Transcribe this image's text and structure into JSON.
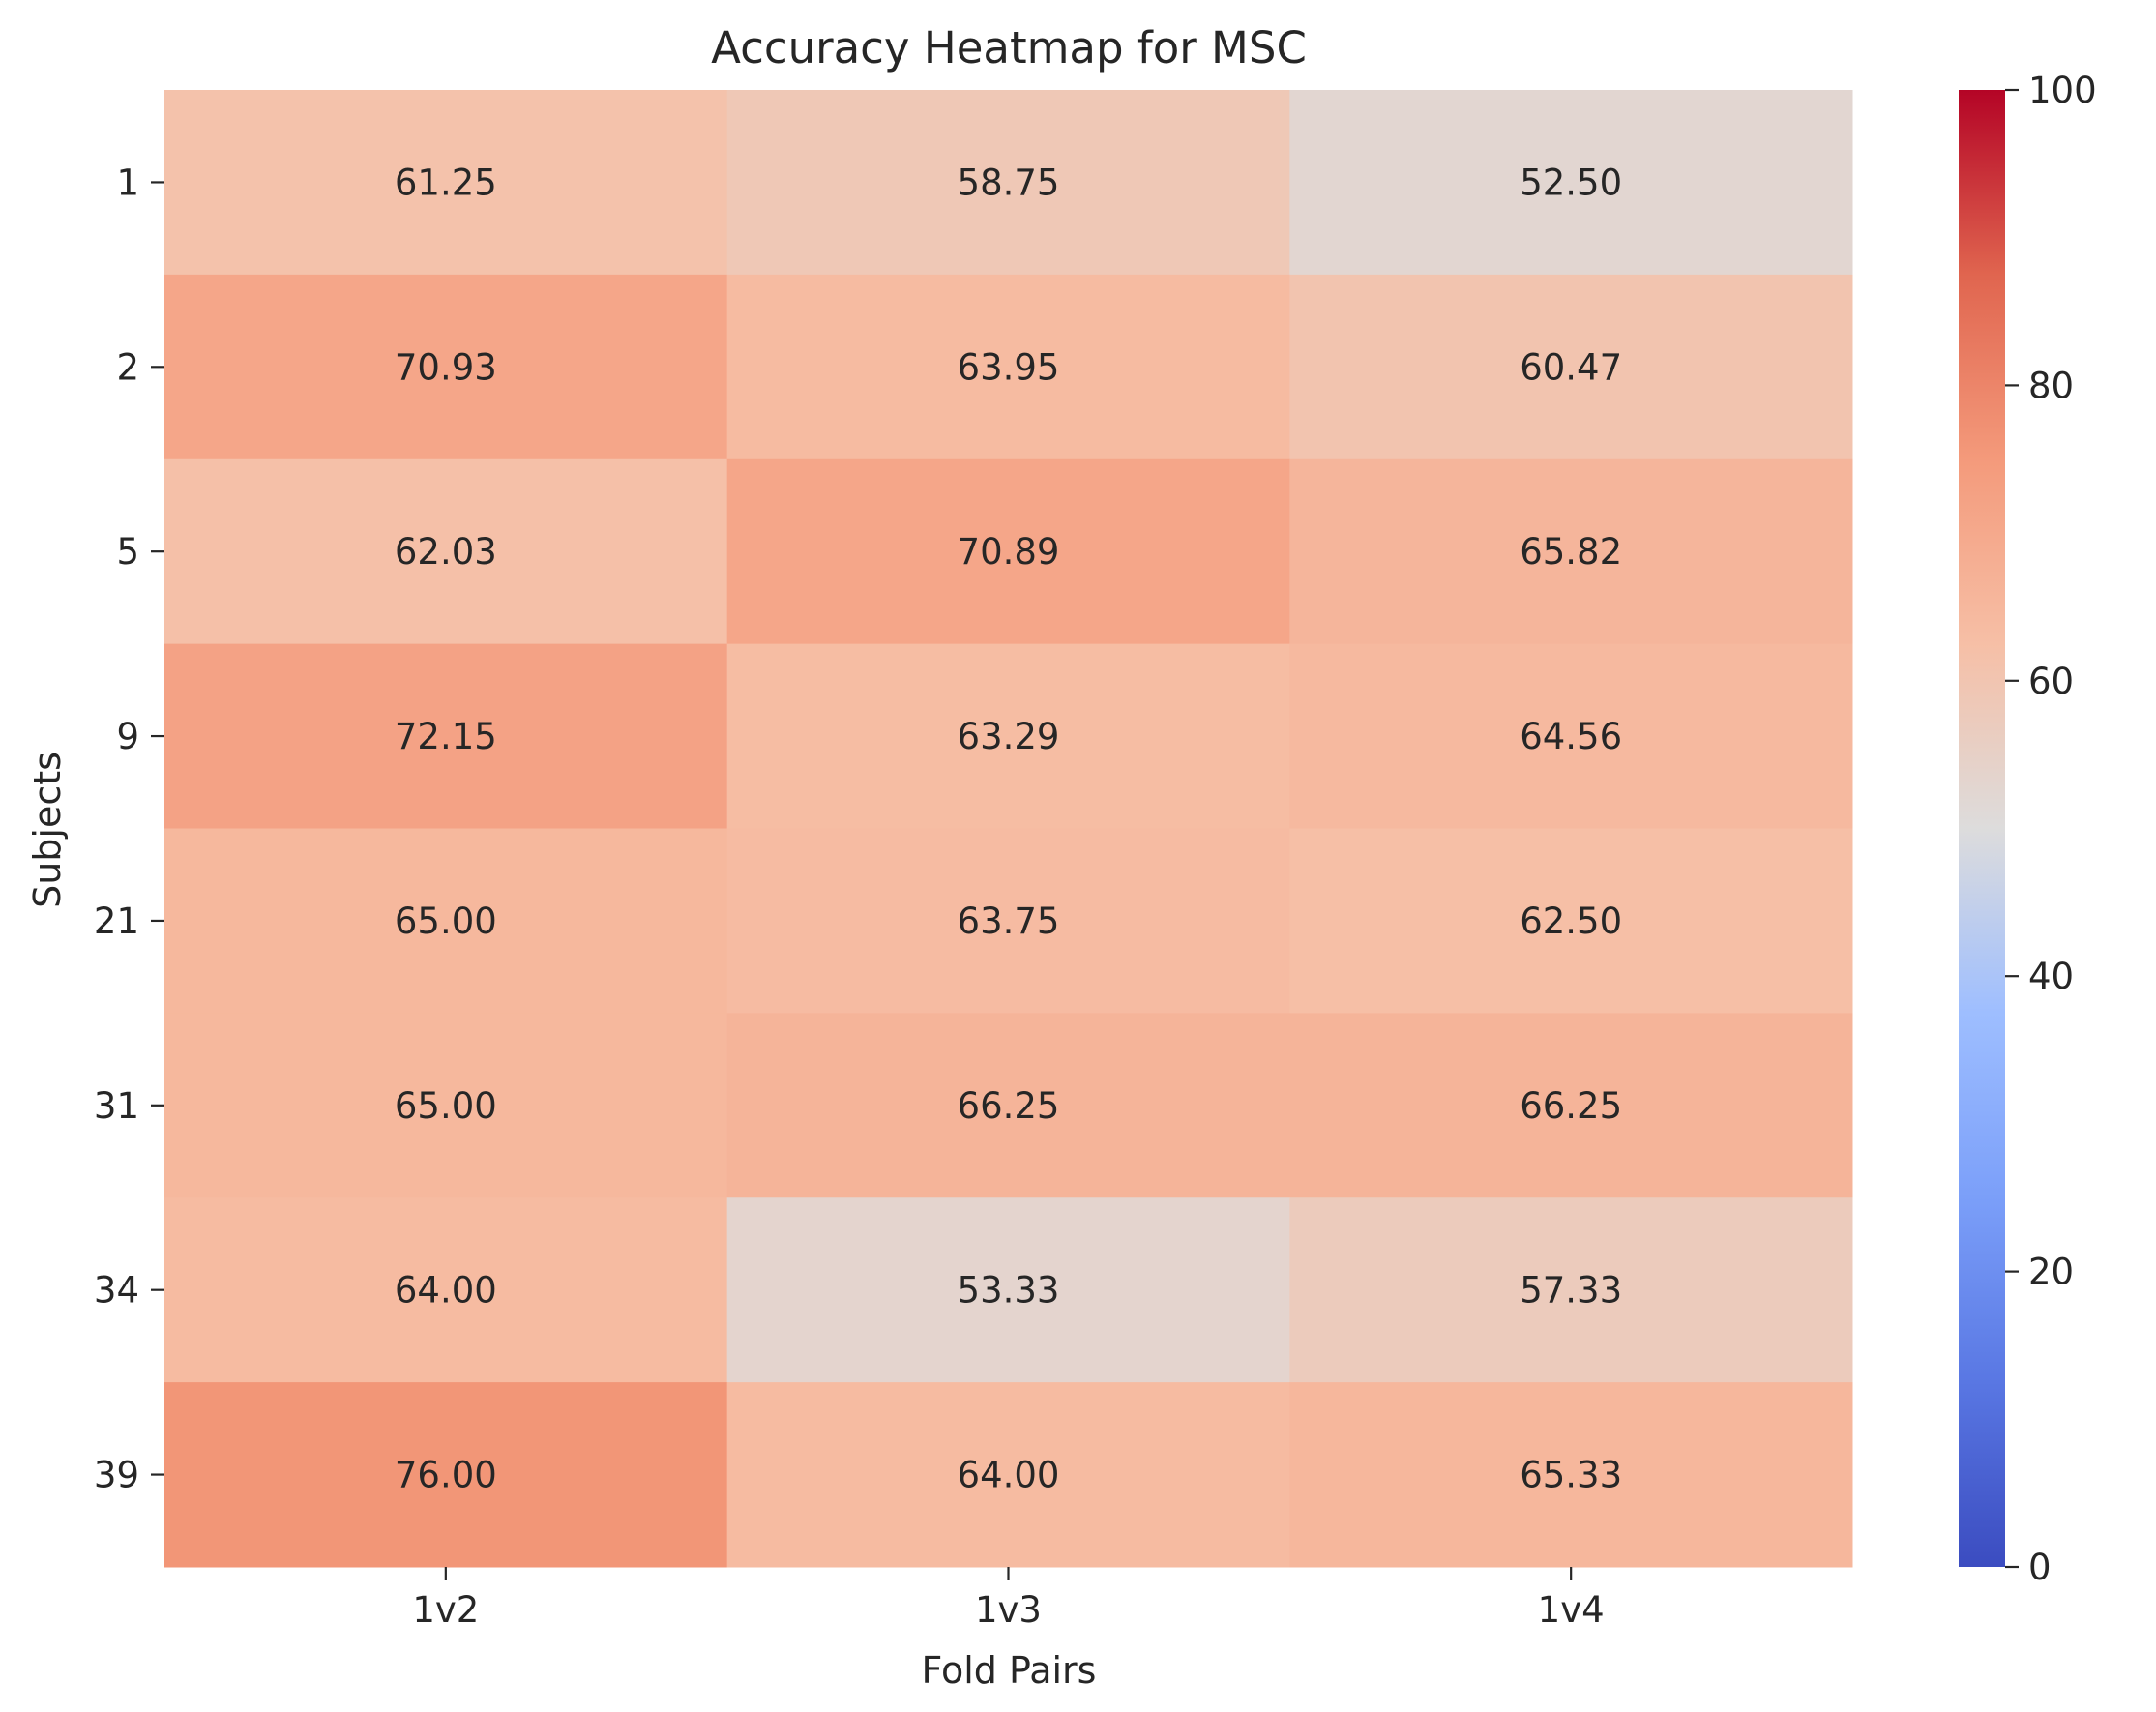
{
  "chart_data": {
    "type": "heatmap",
    "title": "Accuracy Heatmap for MSC",
    "xlabel": "Fold Pairs",
    "ylabel": "Subjects",
    "x_categories": [
      "1v2",
      "1v3",
      "1v4"
    ],
    "y_categories": [
      "1",
      "2",
      "5",
      "9",
      "21",
      "31",
      "34",
      "39"
    ],
    "values": [
      [
        61.25,
        58.75,
        52.5
      ],
      [
        70.93,
        63.95,
        60.47
      ],
      [
        62.03,
        70.89,
        65.82
      ],
      [
        72.15,
        63.29,
        64.56
      ],
      [
        65.0,
        63.75,
        62.5
      ],
      [
        65.0,
        66.25,
        66.25
      ],
      [
        64.0,
        53.33,
        57.33
      ],
      [
        76.0,
        64.0,
        65.33
      ]
    ],
    "cell_labels": [
      [
        "61.25",
        "58.75",
        "52.50"
      ],
      [
        "70.93",
        "63.95",
        "60.47"
      ],
      [
        "62.03",
        "70.89",
        "65.82"
      ],
      [
        "72.15",
        "63.29",
        "64.56"
      ],
      [
        "65.00",
        "63.75",
        "62.50"
      ],
      [
        "65.00",
        "66.25",
        "66.25"
      ],
      [
        "64.00",
        "53.33",
        "57.33"
      ],
      [
        "76.00",
        "64.00",
        "65.33"
      ]
    ],
    "colormap": "coolwarm",
    "vmin": 0,
    "vmax": 100,
    "colorbar_ticks": [
      0,
      20,
      40,
      60,
      80,
      100
    ],
    "colorbar_tick_labels": [
      "0",
      "20",
      "40",
      "60",
      "80",
      "100"
    ],
    "grid": false,
    "colorbar_position": "right"
  }
}
